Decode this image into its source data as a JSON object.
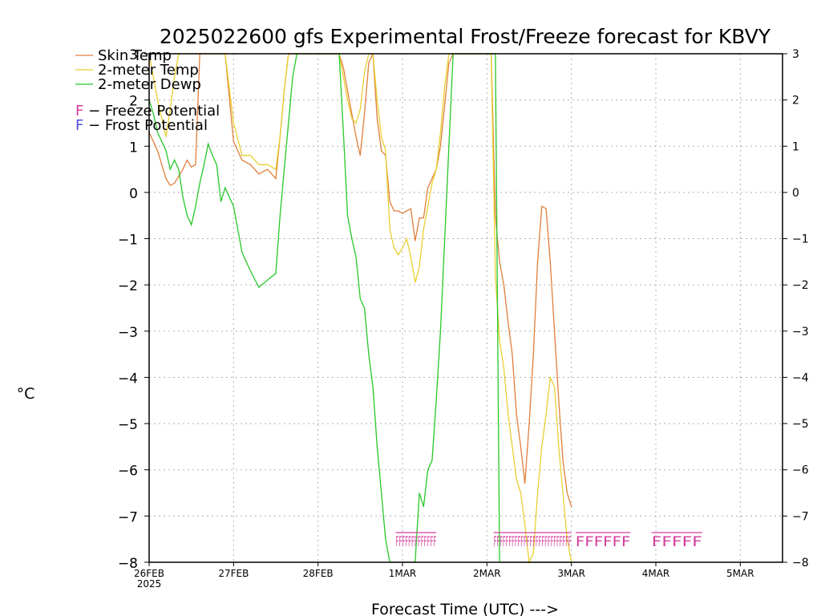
{
  "chart_data": {
    "type": "line",
    "title": "2025022600 gfs Experimental Frost/Freeze forecast for KBVY",
    "ylabel": "°C",
    "xlabel": "Forecast Time (UTC) --->",
    "ylim": [
      -8,
      3
    ],
    "xlim": [
      0,
      7.5
    ],
    "yticks": [
      3,
      2,
      1,
      0,
      -1,
      -2,
      -3,
      -4,
      -5,
      -6,
      -7,
      -8
    ],
    "xticks": [
      {
        "v": 0,
        "label": "26FEB",
        "sub": "2025"
      },
      {
        "v": 1,
        "label": "27FEB"
      },
      {
        "v": 2,
        "label": "28FEB"
      },
      {
        "v": 3,
        "label": "1MAR"
      },
      {
        "v": 4,
        "label": "2MAR"
      },
      {
        "v": 5,
        "label": "3MAR"
      },
      {
        "v": 6,
        "label": "4MAR"
      },
      {
        "v": 7,
        "label": "5MAR"
      }
    ],
    "grid": true,
    "legend_position": "top-left",
    "series": [
      {
        "name": "Skin Temp",
        "color": "#e07f3c",
        "x": [
          0,
          0.05,
          0.1,
          0.15,
          0.2,
          0.25,
          0.3,
          0.35,
          0.4,
          0.45,
          0.5,
          0.55,
          0.6,
          0.65,
          0.7,
          0.75,
          0.8,
          0.85,
          0.9,
          1,
          1.1,
          1.2,
          1.3,
          1.4,
          1.5,
          1.55,
          1.6,
          1.65,
          1.7,
          1.75,
          2.25,
          2.3,
          2.35,
          2.4,
          2.45,
          2.5,
          2.55,
          2.6,
          2.65,
          2.7,
          2.75,
          2.8,
          2.85,
          2.9,
          2.95,
          3,
          3.05,
          3.1,
          3.15,
          3.2,
          3.25,
          3.3,
          3.35,
          3.4,
          3.45,
          3.5,
          3.55,
          3.6,
          3.65,
          3.7,
          3.75,
          3.8,
          3.85,
          3.9,
          3.95,
          4,
          4.05,
          4.1,
          4.15,
          4.2,
          4.25,
          4.3,
          4.35,
          4.4,
          4.45,
          4.5,
          4.55,
          4.6,
          4.65,
          4.7,
          4.75,
          4.8,
          4.85,
          4.9,
          4.95,
          5
        ],
        "y": [
          1.3,
          1.1,
          0.9,
          0.6,
          0.3,
          0.15,
          0.2,
          0.35,
          0.5,
          0.7,
          0.55,
          0.6,
          3,
          3,
          3,
          3,
          3,
          3,
          3,
          1.1,
          0.7,
          0.6,
          0.4,
          0.5,
          0.3,
          1.2,
          2.2,
          3,
          3,
          3,
          3,
          2.7,
          2.2,
          1.7,
          1.2,
          0.8,
          1.7,
          2.8,
          3,
          1.6,
          0.9,
          0.8,
          -0.2,
          -0.4,
          -0.4,
          -0.45,
          -0.4,
          -0.35,
          -1.05,
          -0.55,
          -0.55,
          0.1,
          0.3,
          0.5,
          1,
          1.9,
          2.8,
          3,
          3,
          3,
          3,
          3,
          3,
          3,
          3,
          3,
          3,
          -0.5,
          -1.5,
          -2,
          -2.8,
          -3.5,
          -4.8,
          -5.5,
          -6.3,
          -5,
          -3.5,
          -1.5,
          -0.3,
          -0.35,
          -1.5,
          -3,
          -4.5,
          -5.8,
          -6.5,
          -6.8
        ]
      },
      {
        "name": "2-meter Temp",
        "color": "#e8d030",
        "x": [
          0,
          0.05,
          0.1,
          0.15,
          0.2,
          0.25,
          0.3,
          0.35,
          0.4,
          0.45,
          0.5,
          0.55,
          0.6,
          0.65,
          0.7,
          0.75,
          0.8,
          0.85,
          0.9,
          1,
          1.1,
          1.2,
          1.3,
          1.4,
          1.5,
          1.55,
          1.6,
          1.65,
          1.7,
          1.75,
          2.25,
          2.3,
          2.35,
          2.4,
          2.45,
          2.5,
          2.55,
          2.6,
          2.65,
          2.7,
          2.75,
          2.8,
          2.85,
          2.9,
          2.95,
          3,
          3.05,
          3.1,
          3.15,
          3.2,
          3.25,
          3.3,
          3.35,
          3.4,
          3.45,
          3.5,
          3.55,
          3.6,
          3.65,
          3.7,
          3.75,
          3.8,
          3.85,
          3.9,
          3.95,
          4,
          4.05,
          4.1,
          4.15,
          4.2,
          4.25,
          4.3,
          4.35,
          4.4,
          4.45,
          4.5,
          4.55,
          4.6,
          4.65,
          4.7,
          4.75,
          4.8,
          4.85,
          4.9,
          4.95,
          5
        ],
        "y": [
          3,
          2.5,
          2,
          1.6,
          1.2,
          1.8,
          2.5,
          3,
          3,
          3,
          3,
          3,
          3,
          3,
          3,
          3,
          3,
          3,
          3,
          1.5,
          0.8,
          0.8,
          0.6,
          0.6,
          0.5,
          1.2,
          2.2,
          3,
          3,
          3,
          3,
          2.5,
          2,
          1.6,
          1.5,
          1.8,
          2.6,
          3,
          3,
          2,
          1.2,
          0.9,
          -0.8,
          -1.2,
          -1.35,
          -1.2,
          -1,
          -1.4,
          -1.95,
          -1.6,
          -0.8,
          -0.3,
          0.2,
          0.5,
          1.3,
          2.3,
          3,
          3,
          3,
          3,
          3,
          3,
          3,
          3,
          3,
          3,
          3,
          -1.8,
          -3.2,
          -3.8,
          -4.8,
          -5.5,
          -6.2,
          -6.5,
          -7.2,
          -8,
          -7.8,
          -6.5,
          -5.5,
          -4.8,
          -4,
          -4.2,
          -5.5,
          -6.5,
          -7.5,
          -8
        ]
      },
      {
        "name": "2-meter Dewp",
        "color": "#28c828",
        "x": [
          0,
          0.05,
          0.1,
          0.15,
          0.2,
          0.25,
          0.3,
          0.35,
          0.4,
          0.45,
          0.5,
          0.55,
          0.6,
          0.65,
          0.7,
          0.75,
          0.8,
          0.85,
          0.9,
          1,
          1.1,
          1.2,
          1.3,
          1.4,
          1.5,
          1.55,
          1.6,
          1.65,
          1.7,
          1.75,
          2.25,
          2.3,
          2.35,
          2.4,
          2.45,
          2.5,
          2.55,
          2.6,
          2.65,
          2.7,
          2.75,
          2.8,
          2.85,
          2.9,
          2.95,
          3,
          3.05,
          3.1,
          3.15,
          3.2,
          3.25,
          3.3,
          3.35,
          3.4,
          3.45,
          3.5,
          3.55,
          3.6,
          3.65,
          3.7,
          3.75,
          3.8,
          3.85,
          3.9,
          3.95,
          4,
          4.05,
          4.1,
          4.15,
          4.2,
          4.25,
          4.3,
          4.35,
          4.4,
          4.45,
          4.5,
          4.55,
          4.6,
          4.65,
          4.7,
          4.75,
          4.8,
          4.85,
          4.9,
          4.95,
          5
        ],
        "y": [
          2,
          1.7,
          1.3,
          1.1,
          0.9,
          0.5,
          0.7,
          0.5,
          -0.1,
          -0.5,
          -0.7,
          -0.3,
          0.2,
          0.6,
          1.05,
          0.8,
          0.6,
          -0.2,
          0.1,
          -0.3,
          -1.3,
          -1.7,
          -2.05,
          -1.9,
          -1.75,
          -0.5,
          0.5,
          1.5,
          2.5,
          3,
          3,
          1.3,
          -0.5,
          -1,
          -1.4,
          -2.3,
          -2.5,
          -3.5,
          -4.2,
          -5.5,
          -6.5,
          -7.5,
          -8,
          -8,
          -8,
          -8,
          -8,
          -8,
          -8,
          -6.5,
          -6.8,
          -6,
          -5.8,
          -4.5,
          -3,
          -1,
          1,
          3,
          3,
          3,
          3,
          3,
          3,
          3,
          3,
          3,
          3,
          3,
          -8,
          -8,
          -8,
          -8,
          -8,
          -8,
          -8,
          -8,
          -8,
          -8,
          -8,
          -8,
          -8,
          -8,
          -8,
          -8,
          -8,
          -8
        ]
      }
    ],
    "freeze_marks": [
      {
        "start": 2.92,
        "end": 3.4,
        "label": "FFFFFFFFFFFFF"
      },
      {
        "start": 4.08,
        "end": 5,
        "label": "FFFFFFFFFFFFFFFFFFFFFFFFFF"
      },
      {
        "start": 5.05,
        "end": 5.7,
        "label": "FFFFFF"
      },
      {
        "start": 5.95,
        "end": 6.55,
        "label": "FFFFF"
      }
    ]
  },
  "legend": {
    "items": [
      {
        "label": "Skin Temp",
        "color": "#e07f3c"
      },
      {
        "label": "2-meter Temp",
        "color": "#e8d030"
      },
      {
        "label": "2-meter Dewp",
        "color": "#28c828"
      }
    ],
    "freeze": {
      "letter": "F",
      "text": " - Freeze Potential",
      "color": "#d23c9a"
    },
    "frost": {
      "letter": "F",
      "text": " - Frost Potential",
      "color": "#5050e0"
    }
  }
}
